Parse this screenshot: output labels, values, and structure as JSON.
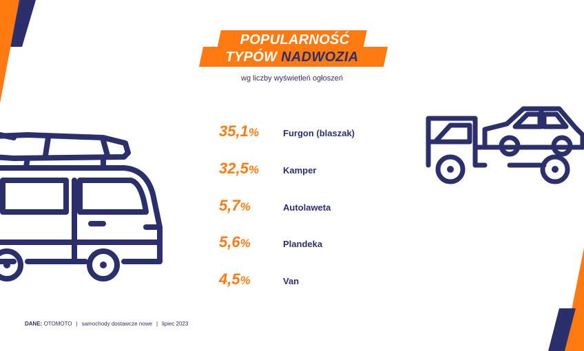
{
  "title": {
    "line1": "POPULARNOŚĆ",
    "line2_plain": "TYPÓW",
    "line2_accent": "NADWOZIA"
  },
  "subtitle": "wg liczby wyświetleń ogłoszeń",
  "items": [
    {
      "value": "35,1",
      "unit": "%",
      "label": "Furgon (blaszak)"
    },
    {
      "value": "32,5",
      "unit": "%",
      "label": "Kamper"
    },
    {
      "value": "5,7",
      "unit": "%",
      "label": "Autolaweta"
    },
    {
      "value": "5,6",
      "unit": "%",
      "label": "Plandeka"
    },
    {
      "value": "4,5",
      "unit": "%",
      "label": "Van"
    }
  ],
  "footer": {
    "source_label": "DANE:",
    "source": "OTOMOTO",
    "category": "samochody dostawcze nowe",
    "date": "lipiec 2023"
  },
  "icons": {
    "left": "camper-van-icon",
    "right": "tow-truck-icon"
  },
  "colors": {
    "accent": "#ff7a10",
    "navy": "#2b2f6b"
  }
}
